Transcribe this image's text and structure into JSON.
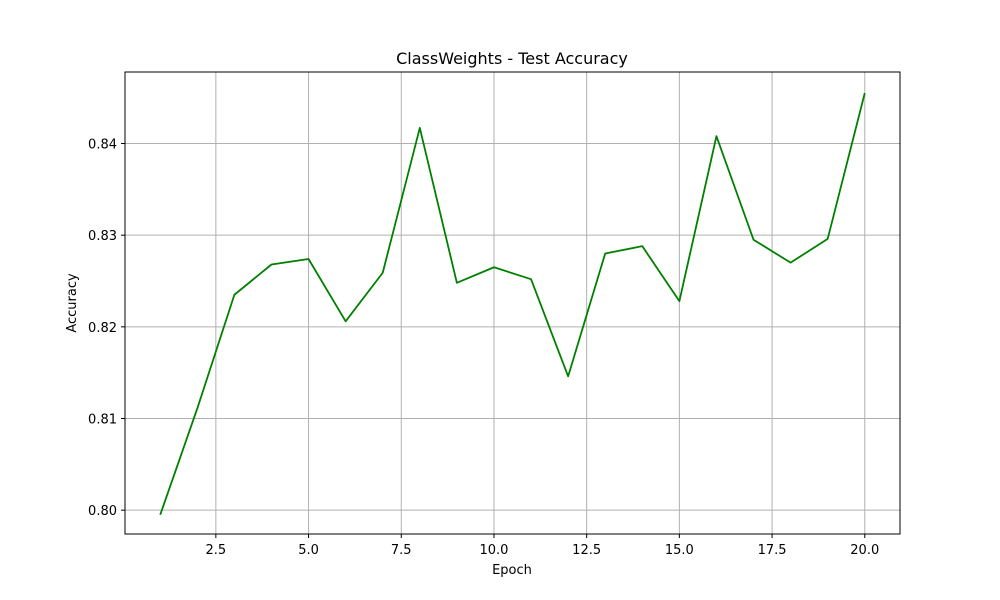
{
  "chart_data": {
    "type": "line",
    "title": "ClassWeights - Test Accuracy",
    "xlabel": "Epoch",
    "ylabel": "Accuracy",
    "xlim": [
      0.05,
      20.95
    ],
    "ylim": [
      0.7974,
      0.8478
    ],
    "xticks": [
      2.5,
      5.0,
      7.5,
      10.0,
      12.5,
      15.0,
      17.5,
      20.0
    ],
    "xtick_labels": [
      "2.5",
      "5.0",
      "7.5",
      "10.0",
      "12.5",
      "15.0",
      "17.5",
      "20.0"
    ],
    "yticks": [
      0.8,
      0.81,
      0.82,
      0.83,
      0.84
    ],
    "ytick_labels": [
      "0.80",
      "0.81",
      "0.82",
      "0.83",
      "0.84"
    ],
    "grid": true,
    "color": "#008000",
    "series": [
      {
        "x": [
          1,
          2,
          3,
          4,
          5,
          6,
          7,
          8,
          9,
          10,
          11,
          12,
          13,
          14,
          15,
          16,
          17,
          18,
          19,
          20
        ],
        "values": [
          0.7995,
          0.8111,
          0.8235,
          0.8268,
          0.8274,
          0.8206,
          0.8259,
          0.8417,
          0.8248,
          0.8265,
          0.8252,
          0.8146,
          0.828,
          0.8288,
          0.8228,
          0.8408,
          0.8295,
          0.827,
          0.8296,
          0.8455
        ]
      }
    ]
  }
}
